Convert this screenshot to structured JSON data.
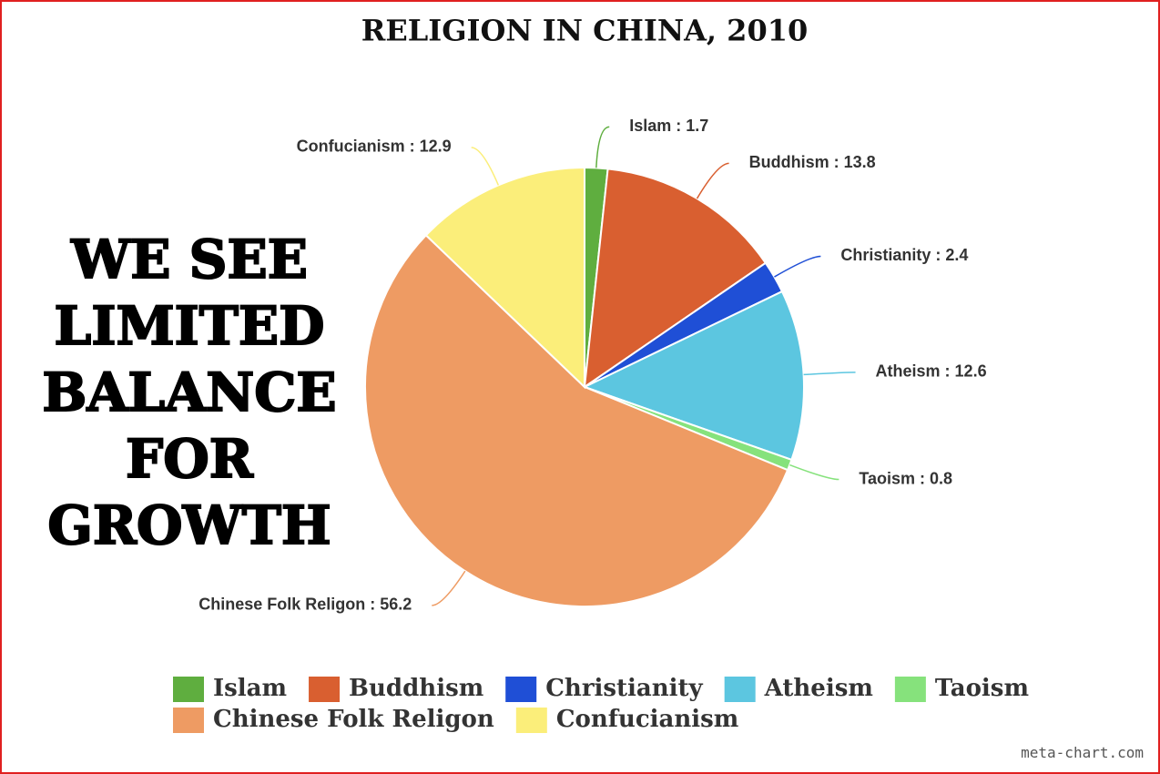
{
  "chart_data": {
    "type": "pie",
    "title": "RELIGION IN CHINA, 2010",
    "categories": [
      "Islam",
      "Buddhism",
      "Christianity",
      "Atheism",
      "Taoism",
      "Chinese Folk Religon",
      "Confucianism"
    ],
    "values": [
      1.7,
      13.8,
      2.4,
      12.6,
      0.8,
      56.2,
      12.9
    ],
    "value_labels": [
      "Islam : 1.7",
      "Buddhism : 13.8",
      "Christianity : 2.4",
      "Atheism : 12.6",
      "Taoism : 0.8",
      "Chinese Folk Religon : 56.2",
      "Confucianism : 12.9"
    ],
    "colors": [
      "#5fae3f",
      "#d95f30",
      "#1f4fd6",
      "#5cc6e0",
      "#86e27c",
      "#ee9b63",
      "#fbee7a"
    ],
    "legend": "bottom",
    "annotation": [
      "WE SEE",
      "LIMITED",
      "BALANCE",
      "FOR",
      "GROWTH"
    ],
    "credit": "meta-chart.com"
  }
}
